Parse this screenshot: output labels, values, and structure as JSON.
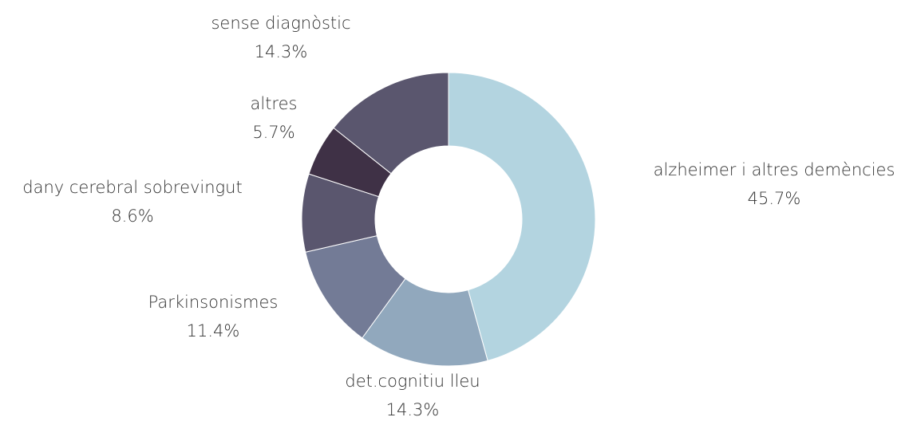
{
  "chart_data": {
    "type": "pie",
    "categories": [
      "alzheimer i altres demències",
      "det.cognitiu lleu",
      "Parkinsonismes",
      "dany cerebral sobrevingut",
      "altres",
      "sense diagnòstic"
    ],
    "values": [
      45.7,
      14.3,
      11.4,
      8.6,
      5.7,
      14.3
    ],
    "value_labels": [
      "45.7%",
      "14.3%",
      "11.4%",
      "8.6%",
      "5.7%",
      "14.3%"
    ],
    "colors": [
      "#b3d4e0",
      "#91a8bd",
      "#737b96",
      "#5a566e",
      "#3f3146",
      "#5a566e"
    ]
  }
}
